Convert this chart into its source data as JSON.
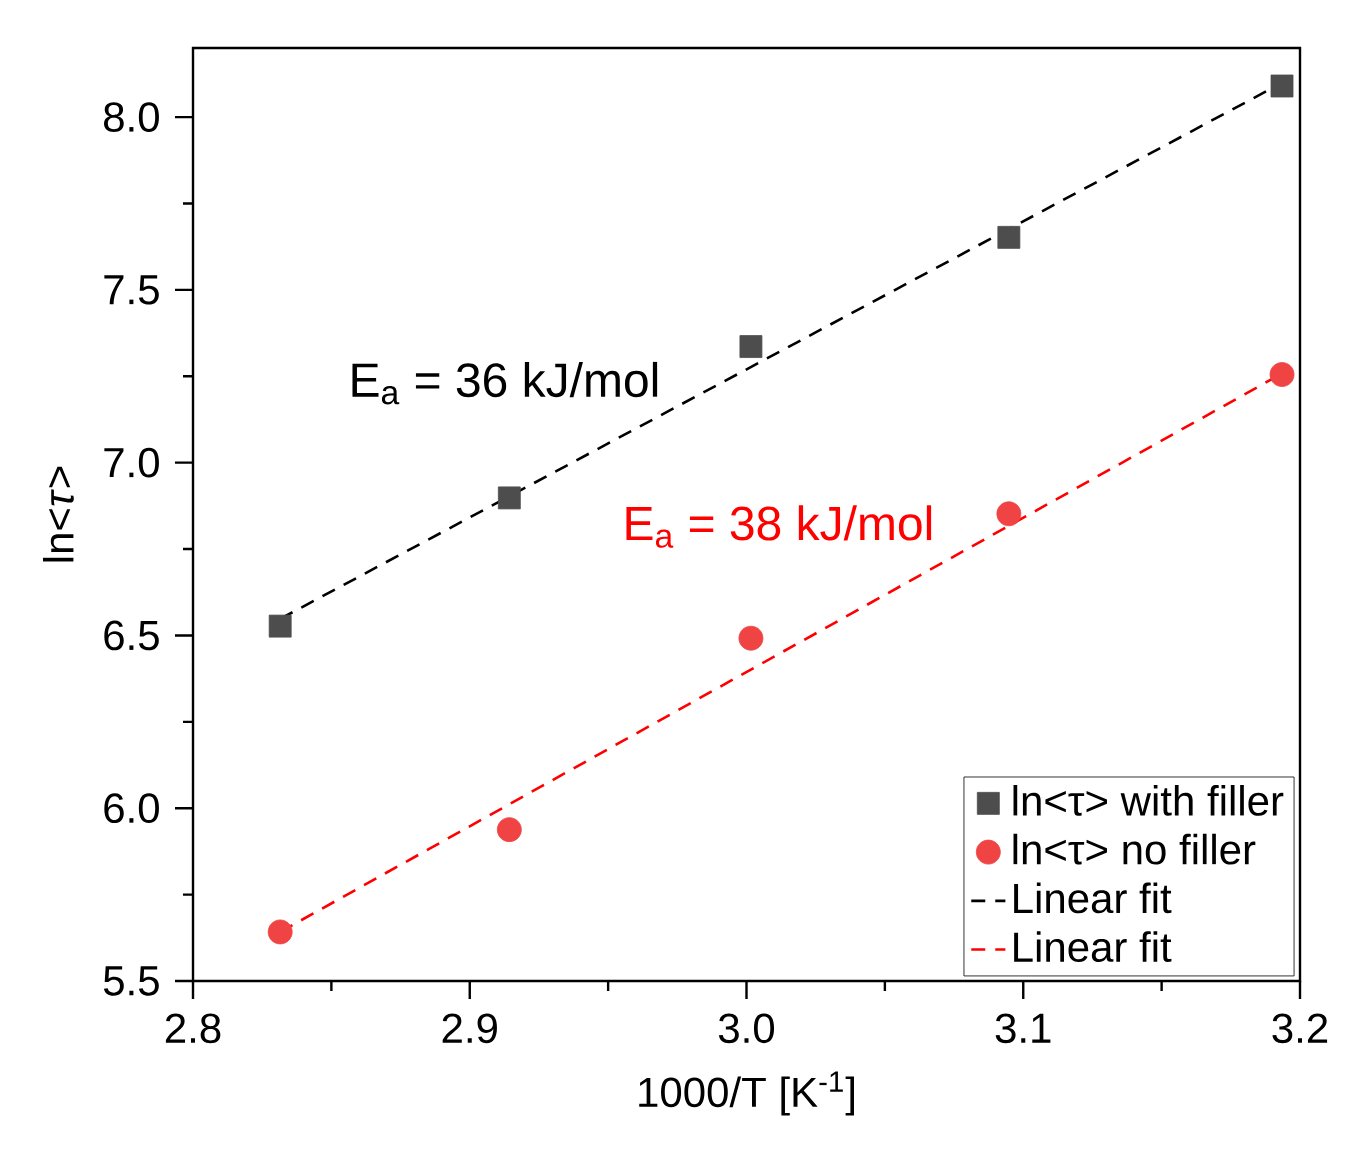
{
  "chart_data": {
    "type": "scatter",
    "xlabel": "1000/T [K$^{-1}$]",
    "ylabel": "ln<*τ*>",
    "xlim": [
      2.8,
      3.2
    ],
    "ylim": [
      5.5,
      8.2
    ],
    "xticks": [
      {
        "value": 2.8,
        "label": "2.8"
      },
      {
        "value": 2.9,
        "label": "2.9"
      },
      {
        "value": 3.0,
        "label": "3.0"
      },
      {
        "value": 3.1,
        "label": "3.1"
      },
      {
        "value": 3.2,
        "label": "3.2"
      }
    ],
    "yticks": [
      {
        "value": 5.5,
        "label": "5.5"
      },
      {
        "value": 6.0,
        "label": "6.0"
      },
      {
        "value": 6.5,
        "label": "6.5"
      },
      {
        "value": 7.0,
        "label": "7.0"
      },
      {
        "value": 7.5,
        "label": "7.5"
      },
      {
        "value": 8.0,
        "label": "8.0"
      }
    ],
    "legend": "bottom right",
    "grid": false,
    "annotations": [
      "E$_{a}$ = 36 kJ/mol",
      "E$_{a}$ = 38 kJ/mol"
    ],
    "series": [
      {
        "name": "ln<τ> with filler",
        "marker": "square",
        "color": "#4d4d4d",
        "x": [
          2.8315,
          2.9143,
          3.0016,
          3.0948,
          3.1935
        ],
        "values": [
          6.527,
          6.898,
          7.336,
          7.652,
          8.09
        ]
      },
      {
        "name": "ln<τ> no filler",
        "marker": "circle",
        "color": "#f04343",
        "x": [
          2.8315,
          2.9143,
          3.0016,
          3.0948,
          3.1935
        ],
        "values": [
          5.642,
          5.938,
          6.492,
          6.852,
          7.255
        ]
      },
      {
        "name": "Linear fit",
        "type": "line",
        "line_style": "dashed",
        "color": "#000000",
        "x": [
          2.8315,
          3.1935
        ],
        "values": [
          6.548,
          8.099
        ]
      },
      {
        "name": "Linear fit",
        "type": "line",
        "line_style": "dashed",
        "color": "#ff0000",
        "x": [
          2.8315,
          3.1935
        ],
        "values": [
          5.642,
          7.258
        ]
      }
    ]
  }
}
